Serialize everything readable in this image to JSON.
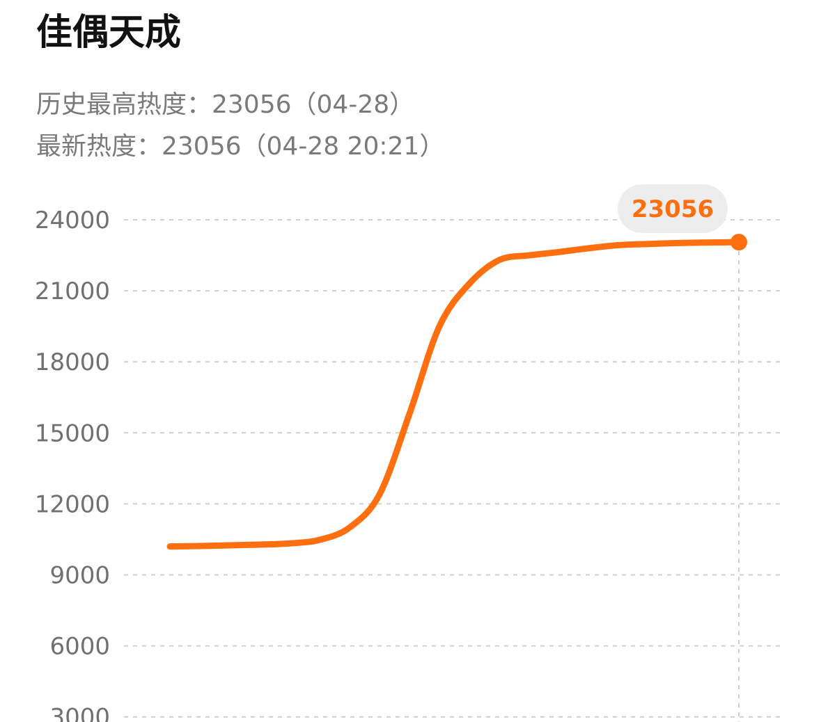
{
  "header": {
    "title": "佳偶天成",
    "peak_label": "历史最高热度：23056（04-28）",
    "latest_label": "最新热度：23056（04-28 20:21）"
  },
  "colors": {
    "line": "#ff6e0f",
    "highlight_bubble": "#ededed",
    "grid": "#cfcfcf",
    "tick_text": "#707070"
  },
  "chart_data": {
    "type": "line",
    "title": "",
    "xlabel": "",
    "ylabel": "",
    "ylim": [
      3000,
      24000
    ],
    "yticks": [
      24000,
      21000,
      18000,
      15000,
      12000,
      9000,
      6000,
      3000
    ],
    "grid": true,
    "legend": "none",
    "series": [
      {
        "values": [
          10200,
          10220,
          10250,
          10280,
          10330,
          10480,
          11000,
          12400,
          15800,
          19500,
          21300,
          22300,
          22500,
          22640,
          22800,
          22930,
          22980,
          23020,
          23040,
          23056
        ]
      }
    ],
    "highlight": {
      "index": 19,
      "value": 23056,
      "label": "23056"
    }
  }
}
